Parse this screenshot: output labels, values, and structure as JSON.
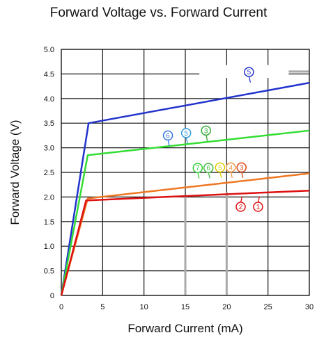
{
  "chart_data": {
    "type": "line",
    "title": "Forward Voltage vs. Forward Current",
    "xlabel": "Forward Current (mA)",
    "ylabel": "Forward Voltage (V)",
    "xlim": [
      0,
      30
    ],
    "ylim": [
      0,
      5.0
    ],
    "xticks": [
      "0",
      "5",
      "10",
      "15",
      "20",
      "25",
      "30"
    ],
    "yticks": [
      "0",
      "0.5",
      "1.0",
      "1.5",
      "2.0",
      "2.5",
      "3.0",
      "3.5",
      "4.0",
      "4.5",
      "5.0"
    ],
    "grid": true,
    "series": [
      {
        "color": "#2233cc",
        "x": [
          0,
          3.3,
          30
        ],
        "y": [
          0,
          3.5,
          4.32
        ]
      },
      {
        "color": "#33dd33",
        "x": [
          0,
          3.2,
          30
        ],
        "y": [
          0,
          2.85,
          3.35
        ]
      },
      {
        "color": "#ee7722",
        "x": [
          0,
          3.2,
          30
        ],
        "y": [
          0,
          1.97,
          2.48
        ]
      },
      {
        "color": "#dd1111",
        "x": [
          0,
          3.0,
          30
        ],
        "y": [
          0,
          1.93,
          2.13
        ]
      }
    ],
    "annotations": [
      {
        "text": "5",
        "color": "#2233cc",
        "x": 22.7,
        "y": 4.54
      },
      {
        "text": "6",
        "color": "#3377dd",
        "x": 12.9,
        "y": 3.25
      },
      {
        "text": "5",
        "color": "#3399dd",
        "x": 15.1,
        "y": 3.3
      },
      {
        "text": "3",
        "color": "#33aa33",
        "x": 17.5,
        "y": 3.35
      },
      {
        "text": "7",
        "color": "#33cc33",
        "x": 16.5,
        "y": 2.59
      },
      {
        "text": "6",
        "color": "#44bb44",
        "x": 17.8,
        "y": 2.59
      },
      {
        "text": "5",
        "color": "#ddcc00",
        "x": 19.2,
        "y": 2.6
      },
      {
        "text": "4",
        "color": "#ee9944",
        "x": 20.5,
        "y": 2.6
      },
      {
        "text": "3",
        "color": "#dd4411",
        "x": 21.8,
        "y": 2.6
      },
      {
        "text": "2",
        "color": "#dd1111",
        "x": 21.7,
        "y": 1.8
      },
      {
        "text": "1",
        "color": "#dd1111",
        "x": 23.8,
        "y": 1.8
      }
    ]
  }
}
